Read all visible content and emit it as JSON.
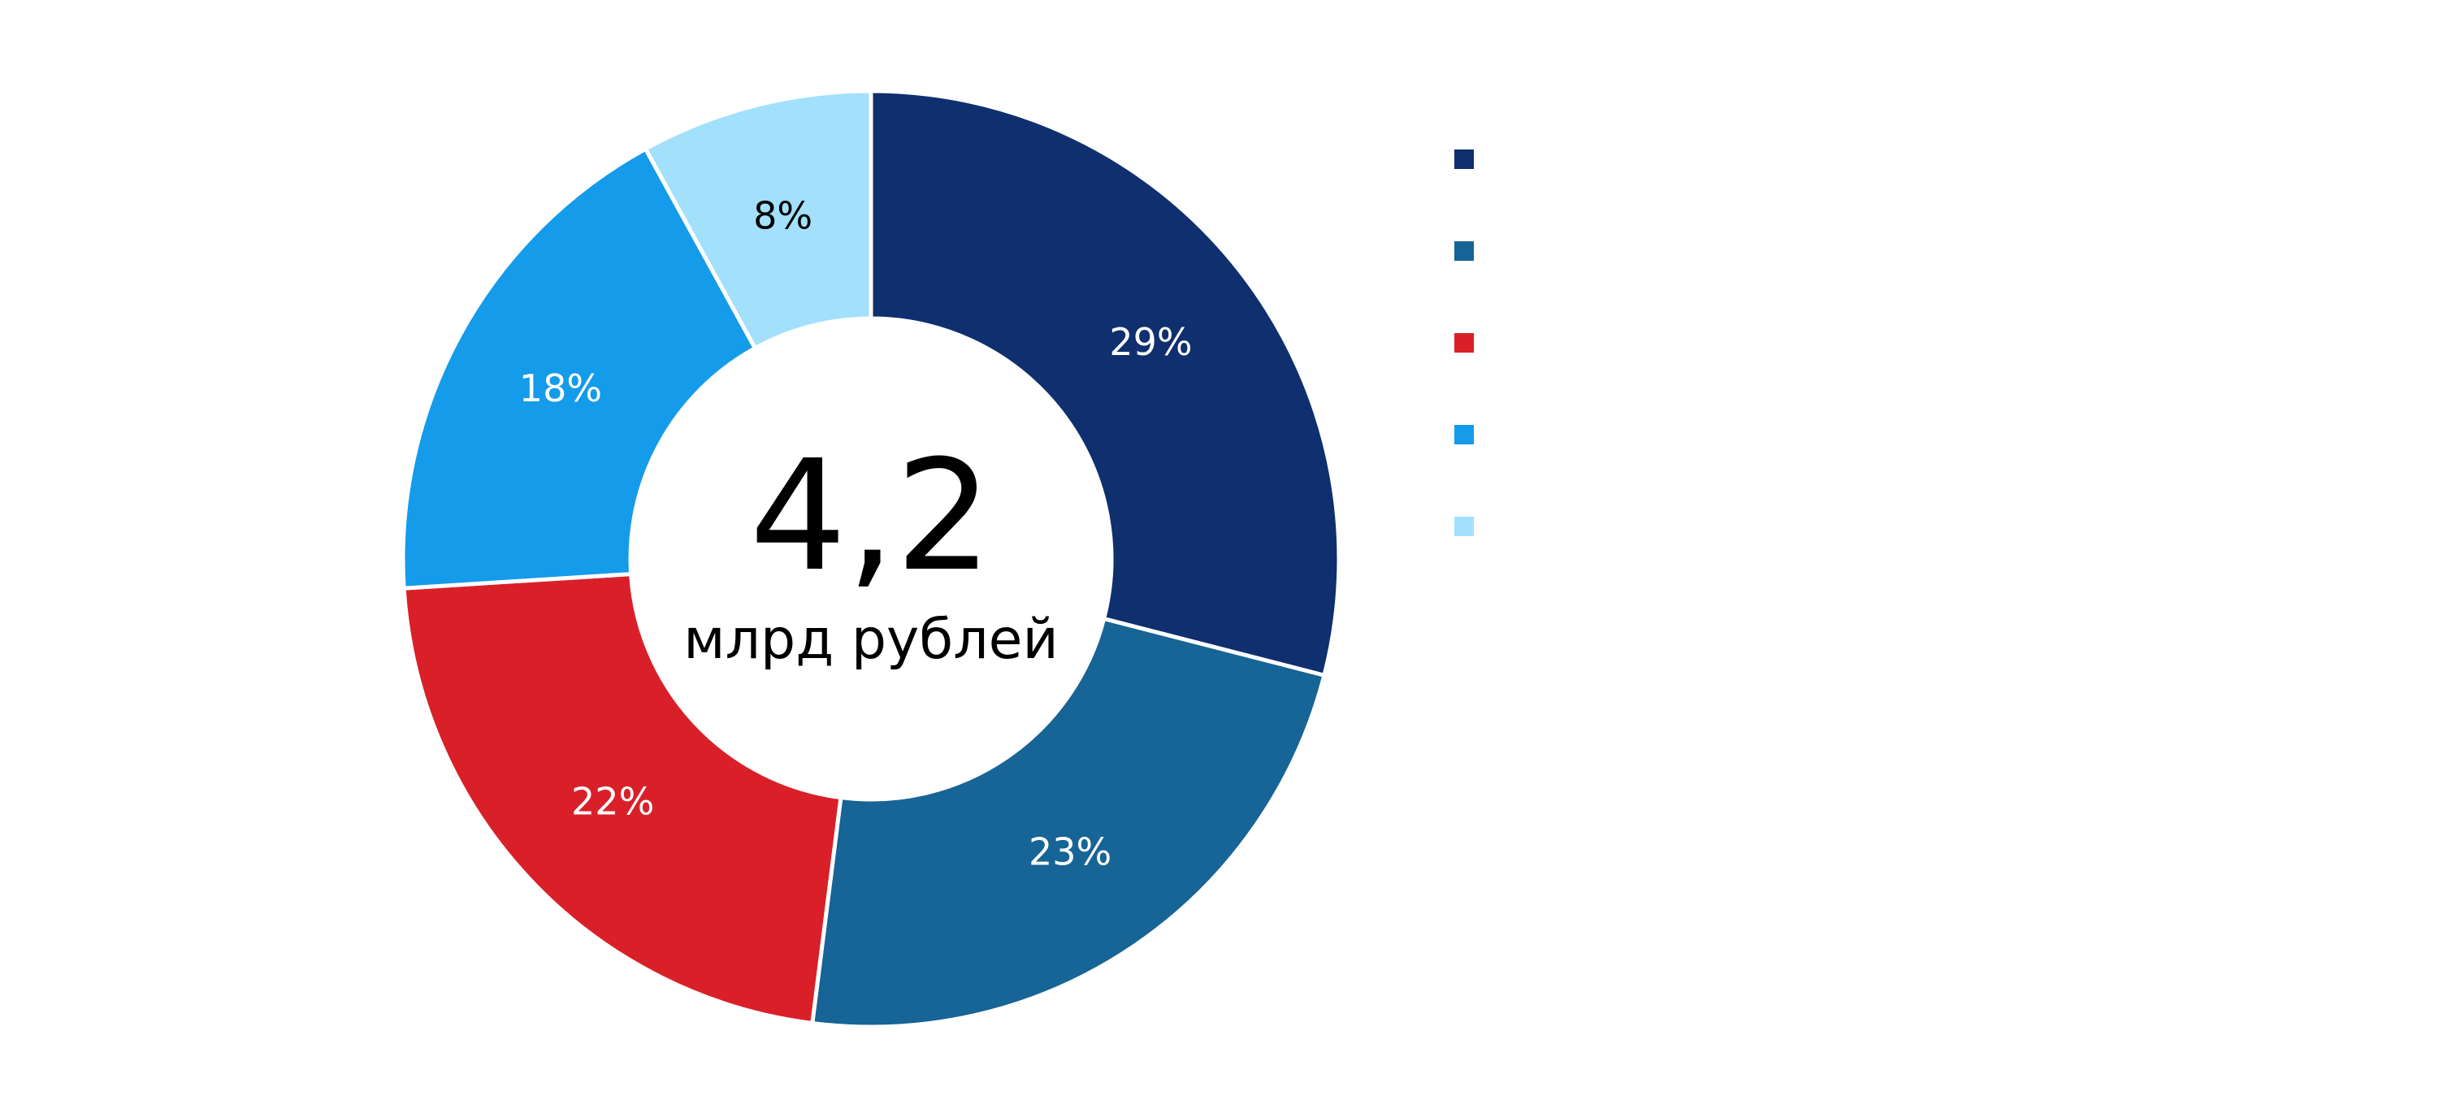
{
  "chart_data": {
    "type": "pie",
    "donut": true,
    "slices": [
      {
        "value": 29,
        "label": "29%",
        "color": "#0f2f6e",
        "label_color": "#ffffff"
      },
      {
        "value": 23,
        "label": "23%",
        "color": "#176496",
        "label_color": "#ffffff"
      },
      {
        "value": 22,
        "label": "22%",
        "color": "#d92029",
        "label_color": "#ffffff"
      },
      {
        "value": 18,
        "label": "18%",
        "color": "#149bea",
        "label_color": "#ffffff"
      },
      {
        "value": 8,
        "label": "8%",
        "color": "#a3e0fc",
        "label_color": "#000000"
      }
    ],
    "center": {
      "value": "4,2",
      "unit": "млрд рублей"
    },
    "legend": {
      "position": "right",
      "entries": [
        {
          "color": "#0f2f6e"
        },
        {
          "color": "#176496"
        },
        {
          "color": "#d92029"
        },
        {
          "color": "#149bea"
        },
        {
          "color": "#a3e0fc"
        }
      ]
    }
  }
}
